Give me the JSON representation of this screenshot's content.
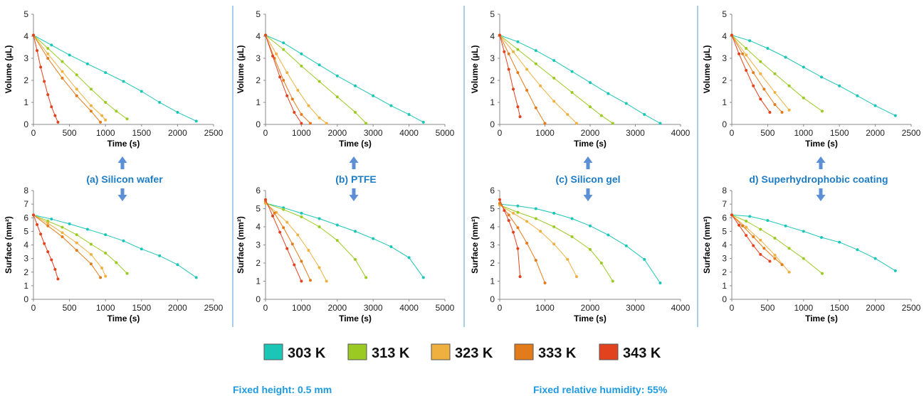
{
  "colors": {
    "303 K": "#1cc6b6",
    "313 K": "#9bcb23",
    "323 K": "#f0b040",
    "333 K": "#e47b1a",
    "343 K": "#e3421e",
    "panel_label": "#1e7cc5",
    "arrow": "#5b8fd6",
    "separator": "#4f9bd9"
  },
  "legend": [
    {
      "label": "303 K",
      "color": "#1cc6b6"
    },
    {
      "label": "313 K",
      "color": "#9bcb23"
    },
    {
      "label": "323 K",
      "color": "#f0b040"
    },
    {
      "label": "333 K",
      "color": "#e47b1a"
    },
    {
      "label": "343 K",
      "color": "#e3421e"
    }
  ],
  "panel_labels": [
    "(a) Silicon wafer",
    "(b) PTFE",
    "(c) Silicon gel",
    "d) Superhydrophobic coating"
  ],
  "footer": {
    "left": "Fixed height: 0.5 mm",
    "right": "Fixed relative humidity: 55%"
  },
  "chart_data": [
    {
      "type": "line",
      "id": "a-volume",
      "xlabel": "Time (s)",
      "ylabel": "Volume (µL)",
      "xlim": [
        0,
        2500
      ],
      "ylim": [
        0,
        5
      ],
      "xticks": [
        0,
        500,
        1000,
        1500,
        2000,
        2500
      ],
      "yticks": [
        0,
        1,
        2,
        3,
        4,
        5
      ],
      "series": [
        {
          "name": "303 K",
          "x": [
            0,
            250,
            500,
            750,
            1000,
            1250,
            1500,
            1750,
            2000,
            2260
          ],
          "y": [
            4.05,
            3.6,
            3.15,
            2.75,
            2.35,
            1.95,
            1.5,
            1.0,
            0.55,
            0.15
          ]
        },
        {
          "name": "313 K",
          "x": [
            0,
            200,
            400,
            600,
            800,
            1000,
            1150,
            1300
          ],
          "y": [
            4.05,
            3.45,
            2.85,
            2.25,
            1.6,
            1.0,
            0.6,
            0.25
          ]
        },
        {
          "name": "323 K",
          "x": [
            0,
            200,
            400,
            600,
            800,
            950,
            1000
          ],
          "y": [
            4.05,
            3.2,
            2.4,
            1.6,
            0.85,
            0.4,
            0.2
          ]
        },
        {
          "name": "333 K",
          "x": [
            0,
            200,
            400,
            600,
            800,
            930
          ],
          "y": [
            4.05,
            3.0,
            2.1,
            1.3,
            0.6,
            0.1
          ]
        },
        {
          "name": "343 K",
          "x": [
            0,
            50,
            100,
            150,
            200,
            250,
            300,
            340
          ],
          "y": [
            4.05,
            3.35,
            2.6,
            1.95,
            1.35,
            0.8,
            0.4,
            0.1
          ]
        }
      ]
    },
    {
      "type": "line",
      "id": "b-volume",
      "xlabel": "Time (s)",
      "ylabel": "Volume (µL)",
      "xlim": [
        0,
        5000
      ],
      "ylim": [
        0,
        5
      ],
      "xticks": [
        0,
        1000,
        2000,
        3000,
        4000,
        5000
      ],
      "yticks": [
        0,
        1,
        2,
        3,
        4,
        5
      ],
      "series": [
        {
          "name": "303 K",
          "x": [
            0,
            500,
            1000,
            1500,
            2000,
            2500,
            3000,
            3500,
            4000,
            4400
          ],
          "y": [
            4.05,
            3.7,
            3.2,
            2.7,
            2.2,
            1.75,
            1.3,
            0.85,
            0.45,
            0.1
          ]
        },
        {
          "name": "313 K",
          "x": [
            0,
            500,
            1000,
            1500,
            2000,
            2500,
            2800
          ],
          "y": [
            4.05,
            3.4,
            2.65,
            1.95,
            1.25,
            0.55,
            0.05
          ]
        },
        {
          "name": "323 K",
          "x": [
            0,
            300,
            600,
            900,
            1200,
            1500,
            1700
          ],
          "y": [
            4.05,
            3.2,
            2.35,
            1.55,
            0.85,
            0.3,
            0.05
          ]
        },
        {
          "name": "333 K",
          "x": [
            0,
            250,
            500,
            750,
            1000,
            1250
          ],
          "y": [
            4.05,
            3.0,
            2.0,
            1.15,
            0.45,
            0.05
          ]
        },
        {
          "name": "343 K",
          "x": [
            0,
            200,
            400,
            600,
            800,
            1000
          ],
          "y": [
            4.05,
            3.1,
            2.15,
            1.3,
            0.55,
            0.05
          ]
        }
      ]
    },
    {
      "type": "line",
      "id": "c-volume",
      "xlabel": "Time (s)",
      "ylabel": "Volume (µL)",
      "xlim": [
        0,
        4000
      ],
      "ylim": [
        0,
        5
      ],
      "xticks": [
        0,
        1000,
        2000,
        3000,
        4000
      ],
      "yticks": [
        0,
        1,
        2,
        3,
        4,
        5
      ],
      "series": [
        {
          "name": "303 K",
          "x": [
            0,
            400,
            800,
            1200,
            1600,
            2000,
            2400,
            2800,
            3200,
            3550
          ],
          "y": [
            4.05,
            3.75,
            3.35,
            2.9,
            2.4,
            1.9,
            1.4,
            0.95,
            0.45,
            0.05
          ]
        },
        {
          "name": "313 K",
          "x": [
            0,
            400,
            800,
            1200,
            1600,
            2000,
            2250,
            2500
          ],
          "y": [
            4.05,
            3.4,
            2.75,
            2.1,
            1.45,
            0.8,
            0.4,
            0.05
          ]
        },
        {
          "name": "323 K",
          "x": [
            0,
            300,
            600,
            900,
            1200,
            1500,
            1700
          ],
          "y": [
            4.05,
            3.3,
            2.5,
            1.75,
            1.05,
            0.45,
            0.05
          ]
        },
        {
          "name": "333 K",
          "x": [
            0,
            200,
            400,
            600,
            800,
            1000
          ],
          "y": [
            4.05,
            3.2,
            2.35,
            1.55,
            0.75,
            0.05
          ]
        },
        {
          "name": "343 K",
          "x": [
            0,
            100,
            200,
            300,
            400,
            450
          ],
          "y": [
            4.05,
            3.3,
            2.5,
            1.6,
            0.8,
            0.35
          ]
        }
      ]
    },
    {
      "type": "line",
      "id": "d-volume",
      "xlabel": "Time (s)",
      "ylabel": "Volume (µL)",
      "xlim": [
        0,
        2500
      ],
      "ylim": [
        0,
        5
      ],
      "xticks": [
        0,
        500,
        1000,
        1500,
        2000,
        2500
      ],
      "yticks": [
        0,
        1,
        2,
        3,
        4,
        5
      ],
      "series": [
        {
          "name": "303 K",
          "x": [
            0,
            250,
            500,
            750,
            1000,
            1250,
            1500,
            1750,
            2000,
            2280
          ],
          "y": [
            4.05,
            3.8,
            3.45,
            3.05,
            2.6,
            2.15,
            1.75,
            1.3,
            0.85,
            0.4
          ]
        },
        {
          "name": "313 K",
          "x": [
            0,
            200,
            400,
            600,
            800,
            1000,
            1260
          ],
          "y": [
            4.05,
            3.45,
            2.85,
            2.3,
            1.75,
            1.2,
            0.6
          ]
        },
        {
          "name": "323 K",
          "x": [
            0,
            200,
            400,
            600,
            800
          ],
          "y": [
            4.05,
            3.15,
            2.3,
            1.45,
            0.65
          ]
        },
        {
          "name": "333 K",
          "x": [
            0,
            150,
            300,
            450,
            600,
            700
          ],
          "y": [
            4.05,
            3.2,
            2.35,
            1.6,
            0.9,
            0.55
          ]
        },
        {
          "name": "343 K",
          "x": [
            0,
            100,
            200,
            300,
            400,
            530
          ],
          "y": [
            4.05,
            3.2,
            2.45,
            1.75,
            1.15,
            0.55
          ]
        }
      ]
    },
    {
      "type": "line",
      "id": "a-surface",
      "xlabel": "Time (s)",
      "ylabel": "Surface (mm²)",
      "xlim": [
        0,
        2500
      ],
      "ylim": [
        0,
        8
      ],
      "xticks": [
        0,
        500,
        1000,
        1500,
        2000,
        2500
      ],
      "yticks": [
        0,
        1,
        2,
        3,
        4,
        5,
        6,
        7,
        8
      ],
      "series": [
        {
          "name": "303 K",
          "x": [
            0,
            250,
            500,
            750,
            1000,
            1250,
            1500,
            1750,
            2000,
            2260
          ],
          "y": [
            6.2,
            5.9,
            5.55,
            5.15,
            4.75,
            4.3,
            3.7,
            3.2,
            2.55,
            1.6
          ]
        },
        {
          "name": "313 K",
          "x": [
            0,
            200,
            400,
            600,
            800,
            1000,
            1150,
            1300
          ],
          "y": [
            6.2,
            5.75,
            5.3,
            4.75,
            4.05,
            3.4,
            2.7,
            1.9
          ]
        },
        {
          "name": "323 K",
          "x": [
            0,
            200,
            400,
            600,
            800,
            950,
            1000
          ],
          "y": [
            6.2,
            5.6,
            4.9,
            4.15,
            3.3,
            2.3,
            1.7
          ]
        },
        {
          "name": "333 K",
          "x": [
            0,
            200,
            400,
            600,
            800,
            930
          ],
          "y": [
            6.2,
            5.4,
            4.6,
            3.6,
            2.6,
            1.6
          ]
        },
        {
          "name": "343 K",
          "x": [
            0,
            50,
            100,
            150,
            200,
            250,
            300,
            340
          ],
          "y": [
            6.2,
            5.5,
            4.8,
            4.1,
            3.5,
            2.9,
            2.2,
            1.5
          ]
        }
      ]
    },
    {
      "type": "line",
      "id": "b-surface",
      "xlabel": "Time (s)",
      "ylabel": "Surface (mm²)",
      "xlim": [
        0,
        5000
      ],
      "ylim": [
        0,
        6
      ],
      "xticks": [
        0,
        1000,
        2000,
        3000,
        4000,
        5000
      ],
      "yticks": [
        0,
        1,
        2,
        3,
        4,
        5,
        6
      ],
      "series": [
        {
          "name": "303 K",
          "x": [
            0,
            500,
            1000,
            1500,
            2000,
            2500,
            3000,
            3500,
            4000,
            4400
          ],
          "y": [
            5.3,
            5.05,
            4.75,
            4.45,
            4.1,
            3.75,
            3.35,
            2.9,
            2.3,
            1.2
          ]
        },
        {
          "name": "313 K",
          "x": [
            0,
            500,
            1000,
            1500,
            2000,
            2500,
            2800
          ],
          "y": [
            5.3,
            4.95,
            4.55,
            4.0,
            3.25,
            2.2,
            1.2
          ]
        },
        {
          "name": "323 K",
          "x": [
            0,
            300,
            600,
            900,
            1200,
            1500,
            1700
          ],
          "y": [
            5.3,
            4.8,
            4.25,
            3.55,
            2.7,
            1.75,
            1.0
          ]
        },
        {
          "name": "333 K",
          "x": [
            0,
            250,
            500,
            750,
            1000,
            1250
          ],
          "y": [
            5.4,
            4.75,
            3.95,
            3.05,
            2.1,
            1.05
          ]
        },
        {
          "name": "343 K",
          "x": [
            0,
            200,
            400,
            600,
            800,
            1000
          ],
          "y": [
            5.5,
            4.6,
            3.7,
            2.8,
            1.9,
            1.0
          ]
        }
      ]
    },
    {
      "type": "line",
      "id": "c-surface",
      "xlabel": "Time (s)",
      "ylabel": "Surface (mm²)",
      "xlim": [
        0,
        4000
      ],
      "ylim": [
        0,
        6
      ],
      "xticks": [
        0,
        1000,
        2000,
        3000,
        4000
      ],
      "yticks": [
        0,
        1,
        2,
        3,
        4,
        5,
        6
      ],
      "series": [
        {
          "name": "303 K",
          "x": [
            0,
            400,
            800,
            1200,
            1600,
            2000,
            2400,
            2800,
            3200,
            3550
          ],
          "y": [
            5.25,
            5.15,
            5.0,
            4.75,
            4.45,
            4.05,
            3.55,
            2.95,
            2.2,
            0.9
          ]
        },
        {
          "name": "313 K",
          "x": [
            0,
            400,
            800,
            1200,
            1600,
            2000,
            2250,
            2500
          ],
          "y": [
            5.2,
            4.8,
            4.45,
            4.0,
            3.45,
            2.75,
            2.0,
            1.0
          ]
        },
        {
          "name": "323 K",
          "x": [
            0,
            300,
            600,
            900,
            1200,
            1500,
            1700
          ],
          "y": [
            5.2,
            4.75,
            4.3,
            3.75,
            3.05,
            2.2,
            1.25
          ]
        },
        {
          "name": "333 K",
          "x": [
            0,
            200,
            400,
            600,
            800,
            1000
          ],
          "y": [
            5.3,
            4.65,
            3.95,
            3.1,
            2.15,
            0.9
          ]
        },
        {
          "name": "343 K",
          "x": [
            0,
            100,
            200,
            300,
            400,
            450
          ],
          "y": [
            5.5,
            4.9,
            4.35,
            3.7,
            2.8,
            1.25
          ]
        }
      ]
    },
    {
      "type": "line",
      "id": "d-surface",
      "xlabel": "Time (s)",
      "ylabel": "Surface (mm²)",
      "xlim": [
        0,
        2500
      ],
      "ylim": [
        0,
        8
      ],
      "xticks": [
        0,
        500,
        1000,
        1500,
        2000,
        2500
      ],
      "yticks": [
        0,
        1,
        2,
        3,
        4,
        5,
        6,
        7,
        8
      ],
      "series": [
        {
          "name": "303 K",
          "x": [
            0,
            250,
            500,
            750,
            1000,
            1250,
            1500,
            1750,
            2000,
            2280
          ],
          "y": [
            6.2,
            6.1,
            5.8,
            5.4,
            5.0,
            4.55,
            4.2,
            3.65,
            3.0,
            2.1
          ]
        },
        {
          "name": "313 K",
          "x": [
            0,
            200,
            400,
            600,
            800,
            1000,
            1260
          ],
          "y": [
            6.2,
            5.75,
            5.15,
            4.5,
            3.75,
            3.0,
            1.9
          ]
        },
        {
          "name": "323 K",
          "x": [
            0,
            200,
            400,
            600,
            800
          ],
          "y": [
            6.2,
            5.3,
            4.35,
            3.25,
            2.0
          ]
        },
        {
          "name": "333 K",
          "x": [
            0,
            150,
            300,
            450,
            600,
            700
          ],
          "y": [
            6.2,
            5.4,
            4.6,
            3.75,
            3.0,
            2.55
          ]
        },
        {
          "name": "343 K",
          "x": [
            0,
            100,
            200,
            300,
            400,
            530
          ],
          "y": [
            6.2,
            5.45,
            4.7,
            3.95,
            3.3,
            2.8
          ]
        }
      ]
    }
  ]
}
